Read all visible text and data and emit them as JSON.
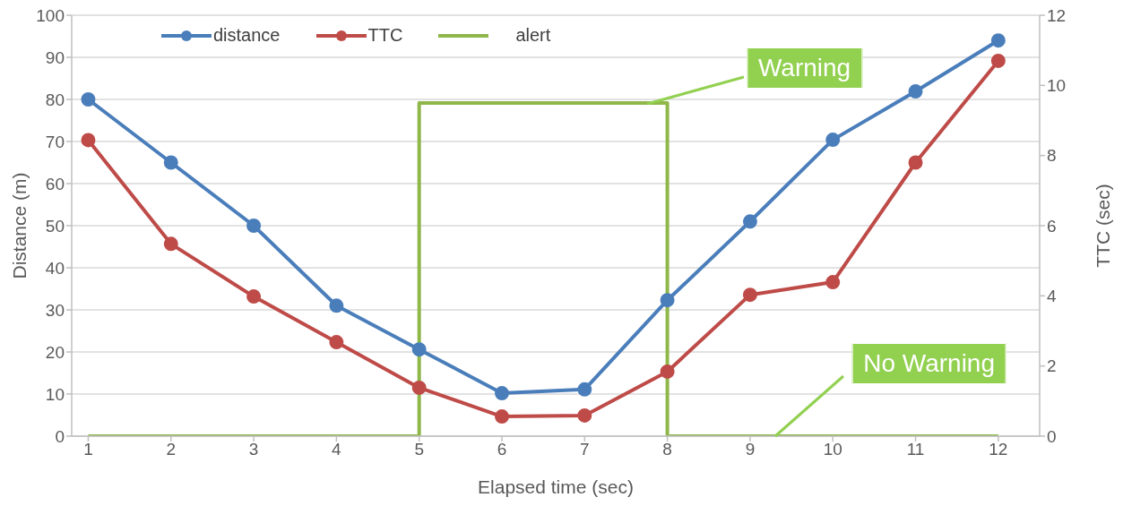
{
  "chart_data": {
    "type": "line",
    "xlabel": "Elapsed time (sec)",
    "ylabel": "Distance (m)",
    "y2label": "TTC (sec)",
    "x": [
      1,
      2,
      3,
      4,
      5,
      6,
      7,
      8,
      9,
      10,
      11,
      12
    ],
    "xlim": [
      0.8,
      12.5
    ],
    "xticks": [
      1,
      2,
      3,
      4,
      5,
      6,
      7,
      8,
      9,
      10,
      11,
      12
    ],
    "ylim": [
      0,
      100
    ],
    "yticks": [
      0,
      10,
      20,
      30,
      40,
      50,
      60,
      70,
      80,
      90,
      100
    ],
    "y2lim": [
      0,
      12
    ],
    "y2ticks": [
      0,
      2,
      4,
      6,
      8,
      10,
      12
    ],
    "series": [
      {
        "name": "distance",
        "color": "#4a7ebb",
        "marker": "circle",
        "values": [
          80,
          65,
          50,
          31,
          20.6,
          10.2,
          11.1,
          32.3,
          51,
          70.4,
          81.9,
          94
        ]
      },
      {
        "name": "TTC",
        "color": "#be4b48",
        "marker": "circle",
        "axis": "y2",
        "values": [
          8.44,
          5.48,
          3.98,
          2.68,
          1.38,
          0.56,
          0.59,
          1.84,
          4.03,
          4.39,
          7.8,
          10.7
        ]
      },
      {
        "name": "alert",
        "color": "#8fb74a",
        "marker": "none",
        "axis": "y2",
        "x": [
          1,
          5,
          5,
          8,
          8,
          12
        ],
        "values": [
          0,
          0,
          9.5,
          9.5,
          0,
          0
        ]
      }
    ],
    "annotations": [
      {
        "text": "Warning",
        "x": 7.75,
        "y": 79
      },
      {
        "text": "No Warning",
        "x": 9.3,
        "y": 0
      }
    ],
    "grid": "y",
    "legend": "top left"
  }
}
